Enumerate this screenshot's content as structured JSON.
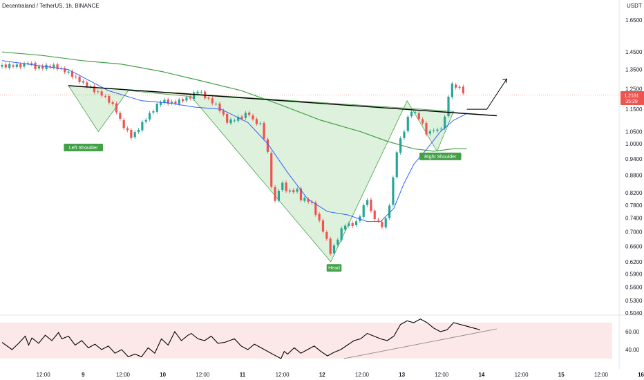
{
  "header": {
    "symbol_title": "Decentraland / TetherUS, 1h, BINANCE",
    "currency": "USDT"
  },
  "chart_data": [
    {
      "type": "candlestick",
      "title": "Decentraland / TetherUS, 1h, BINANCE",
      "scale": "log",
      "ylim": [
        0.5,
        1.72
      ],
      "y_ticks": [
        "1.6500",
        "1.4500",
        "1.3500",
        "1.2500",
        "1.1500",
        "1.0500",
        "1.0000",
        "0.9400",
        "0.8800",
        "0.8200",
        "0.7800",
        "0.7400",
        "0.7000",
        "0.6600",
        "0.6200",
        "0.5900",
        "0.5600",
        "0.5300",
        "0.5040"
      ],
      "y_tick_values": [
        1.65,
        1.45,
        1.35,
        1.25,
        1.15,
        1.05,
        1.0,
        0.94,
        0.88,
        0.82,
        0.78,
        0.74,
        0.7,
        0.66,
        0.62,
        0.59,
        0.56,
        0.53,
        0.504
      ],
      "x_ticks": [
        "12:00",
        "9",
        "12:00",
        "10",
        "12:00",
        "11",
        "12:00",
        "12",
        "12:00",
        "13",
        "12:00",
        "14",
        "12:00",
        "15",
        "12:00",
        "16"
      ],
      "x_tick_hours": [
        12,
        24,
        36,
        48,
        60,
        72,
        84,
        96,
        108,
        120,
        132,
        144,
        156,
        168,
        180,
        192
      ],
      "current_price": "1.2181",
      "countdown": "35:29",
      "candle_count": 126,
      "up_color": "#26a69a",
      "down_color": "#ef5350",
      "close_path": [
        [
          0,
          1.37
        ],
        [
          5,
          1.37
        ],
        [
          8,
          1.39
        ],
        [
          10,
          1.36
        ],
        [
          16,
          1.37
        ],
        [
          20,
          1.33
        ],
        [
          26,
          1.26
        ],
        [
          30,
          1.22
        ],
        [
          34,
          1.16
        ],
        [
          36,
          1.08
        ],
        [
          39,
          1.03
        ],
        [
          41,
          1.06
        ],
        [
          44,
          1.12
        ],
        [
          48,
          1.19
        ],
        [
          52,
          1.18
        ],
        [
          57,
          1.21
        ],
        [
          59,
          1.24
        ],
        [
          62,
          1.2
        ],
        [
          65,
          1.16
        ],
        [
          68,
          1.09
        ],
        [
          73,
          1.12
        ],
        [
          74,
          1.15
        ],
        [
          75,
          1.1
        ],
        [
          78,
          1.08
        ],
        [
          80,
          0.96
        ],
        [
          81,
          0.85
        ],
        [
          82,
          0.78
        ],
        [
          84,
          0.86
        ],
        [
          86,
          0.82
        ],
        [
          89,
          0.83
        ],
        [
          90,
          0.8
        ],
        [
          93,
          0.79
        ],
        [
          96,
          0.72
        ],
        [
          98,
          0.67
        ],
        [
          99,
          0.64
        ],
        [
          101,
          0.68
        ],
        [
          103,
          0.72
        ],
        [
          105,
          0.72
        ],
        [
          107,
          0.73
        ],
        [
          110,
          0.8
        ],
        [
          111,
          0.76
        ],
        [
          113,
          0.73
        ],
        [
          115,
          0.71
        ],
        [
          117,
          0.8
        ],
        [
          119,
          0.98
        ],
        [
          121,
          1.05
        ],
        [
          123,
          1.15
        ],
        [
          125,
          1.12
        ],
        [
          126,
          1.1
        ],
        [
          128,
          1.04
        ],
        [
          130,
          1.06
        ],
        [
          131,
          1.05
        ],
        [
          133,
          1.08
        ],
        [
          135,
          1.27
        ],
        [
          138,
          1.25
        ],
        [
          140,
          1.22
        ]
      ],
      "ma_blue": {
        "color": "#2962ff",
        "values": [
          [
            0,
            1.4
          ],
          [
            20,
            1.35
          ],
          [
            32,
            1.24
          ],
          [
            42,
            1.19
          ],
          [
            50,
            1.18
          ],
          [
            58,
            1.16
          ],
          [
            66,
            1.15
          ],
          [
            74,
            1.09
          ],
          [
            80,
            1.0
          ],
          [
            86,
            0.89
          ],
          [
            92,
            0.8
          ],
          [
            98,
            0.76
          ],
          [
            104,
            0.75
          ],
          [
            110,
            0.73
          ],
          [
            114,
            0.73
          ],
          [
            118,
            0.77
          ],
          [
            121,
            0.85
          ],
          [
            124,
            0.92
          ],
          [
            128,
            0.98
          ],
          [
            132,
            1.05
          ],
          [
            136,
            1.1
          ],
          [
            140,
            1.13
          ]
        ]
      },
      "ma_green": {
        "color": "#43a047",
        "values": [
          [
            0,
            1.45
          ],
          [
            12,
            1.43
          ],
          [
            24,
            1.4
          ],
          [
            36,
            1.38
          ],
          [
            48,
            1.34
          ],
          [
            60,
            1.29
          ],
          [
            72,
            1.24
          ],
          [
            84,
            1.17
          ],
          [
            96,
            1.1
          ],
          [
            108,
            1.05
          ],
          [
            116,
            1.01
          ],
          [
            124,
            0.98
          ],
          [
            130,
            0.97
          ],
          [
            136,
            0.98
          ],
          [
            140,
            0.98
          ]
        ]
      },
      "neckline": {
        "color": "#000000",
        "points": [
          [
            20,
            1.265
          ],
          [
            149,
            1.12
          ]
        ]
      },
      "pattern": {
        "fill": "#d8efd6",
        "stroke": "#43a047",
        "points": [
          [
            20,
            1.265
          ],
          [
            29,
            1.05
          ],
          [
            38,
            1.24
          ],
          [
            57,
            1.21
          ],
          [
            99,
            0.62
          ],
          [
            122,
            1.19
          ],
          [
            131,
            0.97
          ],
          [
            136,
            1.14
          ]
        ]
      },
      "projection": {
        "color": "#000000",
        "points": [
          [
            140,
            1.15
          ],
          [
            146,
            1.15
          ],
          [
            152,
            1.3
          ]
        ]
      },
      "annotations": [
        {
          "text": "Left Shoulder",
          "hour": 24.5,
          "price": 0.985
        },
        {
          "text": "Head",
          "hour": 100,
          "price": 0.605
        },
        {
          "text": "Right Shoulder",
          "hour": 132,
          "price": 0.95
        }
      ]
    },
    {
      "type": "line",
      "title": "",
      "y_ticks": [
        "60.00",
        "40.00"
      ],
      "y_tick_values": [
        60,
        40
      ],
      "ylim": [
        26,
        79
      ],
      "band": [
        30,
        70
      ],
      "band_color": "#fce8e8",
      "series": [
        {
          "color": "#000000",
          "values": [
            [
              0,
              48
            ],
            [
              3,
              40
            ],
            [
              5,
              47
            ],
            [
              7,
              55
            ],
            [
              8,
              45
            ],
            [
              9,
              53
            ],
            [
              11,
              47
            ],
            [
              13,
              56
            ],
            [
              15,
              50
            ],
            [
              17,
              59
            ],
            [
              18,
              52
            ],
            [
              20,
              55
            ],
            [
              22,
              45
            ],
            [
              24,
              50
            ],
            [
              26,
              42
            ],
            [
              28,
              46
            ],
            [
              30,
              40
            ],
            [
              32,
              44
            ],
            [
              34,
              36
            ],
            [
              36,
              40
            ],
            [
              38,
              32
            ],
            [
              40,
              35
            ],
            [
              42,
              32
            ],
            [
              44,
              42
            ],
            [
              46,
              36
            ],
            [
              48,
              52
            ],
            [
              50,
              45
            ],
            [
              52,
              60
            ],
            [
              54,
              50
            ],
            [
              56,
              56
            ],
            [
              57,
              58
            ],
            [
              59,
              52
            ],
            [
              61,
              50
            ],
            [
              63,
              55
            ],
            [
              65,
              47
            ],
            [
              67,
              48
            ],
            [
              70,
              52
            ],
            [
              72,
              44
            ],
            [
              74,
              40
            ],
            [
              76,
              46
            ],
            [
              78,
              42
            ],
            [
              80,
              38
            ],
            [
              82,
              34
            ],
            [
              84,
              30
            ],
            [
              85,
              38
            ],
            [
              86,
              35
            ],
            [
              88,
              42
            ],
            [
              90,
              36
            ],
            [
              92,
              40
            ],
            [
              94,
              44
            ],
            [
              96,
              38
            ],
            [
              98,
              33
            ],
            [
              100,
              37
            ],
            [
              102,
              40
            ],
            [
              104,
              45
            ],
            [
              106,
              50
            ],
            [
              108,
              52
            ],
            [
              110,
              58
            ],
            [
              112,
              55
            ],
            [
              114,
              52
            ],
            [
              116,
              50
            ],
            [
              118,
              55
            ],
            [
              120,
              68
            ],
            [
              122,
              72
            ],
            [
              124,
              70
            ],
            [
              126,
              74
            ],
            [
              128,
              70
            ],
            [
              130,
              64
            ],
            [
              132,
              60
            ],
            [
              134,
              62
            ],
            [
              136,
              70
            ],
            [
              138,
              68
            ],
            [
              140,
              66
            ],
            [
              142,
              64
            ],
            [
              144,
              62
            ]
          ]
        },
        {
          "color": "#888888",
          "values": [
            [
              103,
              30
            ],
            [
              149,
              63
            ]
          ]
        }
      ]
    }
  ]
}
